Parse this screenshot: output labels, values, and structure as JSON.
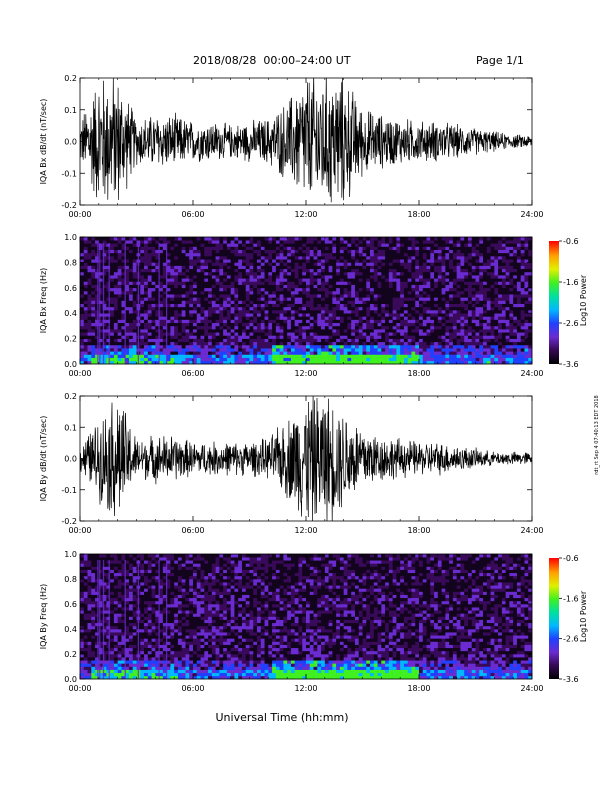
{
  "header": {
    "date_range": "2018/08/28  00:00–24:00 UT",
    "page": "Page 1/1"
  },
  "footer": {
    "xlabel": "Universal Time (hh:mm)"
  },
  "side_note": "rdt_rt Sep 4 07:40:13 EDT 2018",
  "colors": {
    "trace": "#000000",
    "colorbar": [
      "#000000",
      "#3a0a5a",
      "#6a2bd0",
      "#2040ff",
      "#00b8ff",
      "#00e0a0",
      "#40f020",
      "#e0f000",
      "#ffa000",
      "#ff0000"
    ]
  },
  "chart_data": [
    {
      "type": "line",
      "ylabel": "IQA Bx dB/dt (nT/sec)",
      "xlim": [
        "00:00",
        "24:00"
      ],
      "ylim": [
        -0.2,
        0.2
      ],
      "x_ticks": [
        "00:00",
        "06:00",
        "12:00",
        "18:00",
        "24:00"
      ],
      "y_ticks": [
        "-0.2",
        "-0.1",
        "0.0",
        "0.1",
        "0.2"
      ],
      "envelope": {
        "x_hours": [
          0,
          1,
          2,
          3,
          4,
          5,
          6,
          7,
          8,
          9,
          10,
          11,
          12,
          13,
          14,
          15,
          16,
          17,
          18,
          19,
          20,
          21,
          22,
          23,
          24
        ],
        "amplitude": [
          0.06,
          0.2,
          0.2,
          0.07,
          0.08,
          0.08,
          0.06,
          0.06,
          0.05,
          0.06,
          0.07,
          0.12,
          0.2,
          0.2,
          0.2,
          0.1,
          0.08,
          0.07,
          0.06,
          0.06,
          0.05,
          0.04,
          0.03,
          0.02,
          0.02
        ]
      }
    },
    {
      "type": "heatmap",
      "ylabel": "IQA Bx Freq (Hz)",
      "xlim": [
        "00:00",
        "24:00"
      ],
      "ylim": [
        0.0,
        1.0
      ],
      "x_ticks": [
        "00:00",
        "06:00",
        "12:00",
        "18:00",
        "24:00"
      ],
      "y_ticks": [
        "0.0",
        "0.2",
        "0.4",
        "0.6",
        "0.8",
        "1.0"
      ],
      "colorbar": {
        "label": "Log10 Power",
        "range": [
          -3.6,
          -0.6
        ],
        "ticks": [
          "-0.6",
          "-1.6",
          "-2.6",
          "-3.6"
        ]
      }
    },
    {
      "type": "line",
      "ylabel": "IQA By dB/dt (nT/sec)",
      "xlim": [
        "00:00",
        "24:00"
      ],
      "ylim": [
        -0.2,
        0.2
      ],
      "x_ticks": [
        "00:00",
        "06:00",
        "12:00",
        "18:00",
        "24:00"
      ],
      "y_ticks": [
        "-0.2",
        "-0.1",
        "0.0",
        "0.1",
        "0.2"
      ],
      "envelope": {
        "x_hours": [
          0,
          1,
          2,
          3,
          4,
          5,
          6,
          7,
          8,
          9,
          10,
          11,
          12,
          13,
          14,
          15,
          16,
          17,
          18,
          19,
          20,
          21,
          22,
          23,
          24
        ],
        "amplitude": [
          0.04,
          0.12,
          0.2,
          0.06,
          0.07,
          0.07,
          0.05,
          0.05,
          0.05,
          0.05,
          0.06,
          0.12,
          0.2,
          0.2,
          0.15,
          0.1,
          0.07,
          0.06,
          0.05,
          0.05,
          0.04,
          0.03,
          0.02,
          0.02,
          0.02
        ]
      }
    },
    {
      "type": "heatmap",
      "ylabel": "IQA By Freq (Hz)",
      "xlim": [
        "00:00",
        "24:00"
      ],
      "ylim": [
        0.0,
        1.0
      ],
      "x_ticks": [
        "00:00",
        "06:00",
        "12:00",
        "18:00",
        "24:00"
      ],
      "y_ticks": [
        "0.0",
        "0.2",
        "0.4",
        "0.6",
        "0.8",
        "1.0"
      ],
      "colorbar": {
        "label": "Log10 Power",
        "range": [
          -3.6,
          -0.6
        ],
        "ticks": [
          "-0.6",
          "-1.6",
          "-2.6",
          "-3.6"
        ]
      }
    }
  ]
}
